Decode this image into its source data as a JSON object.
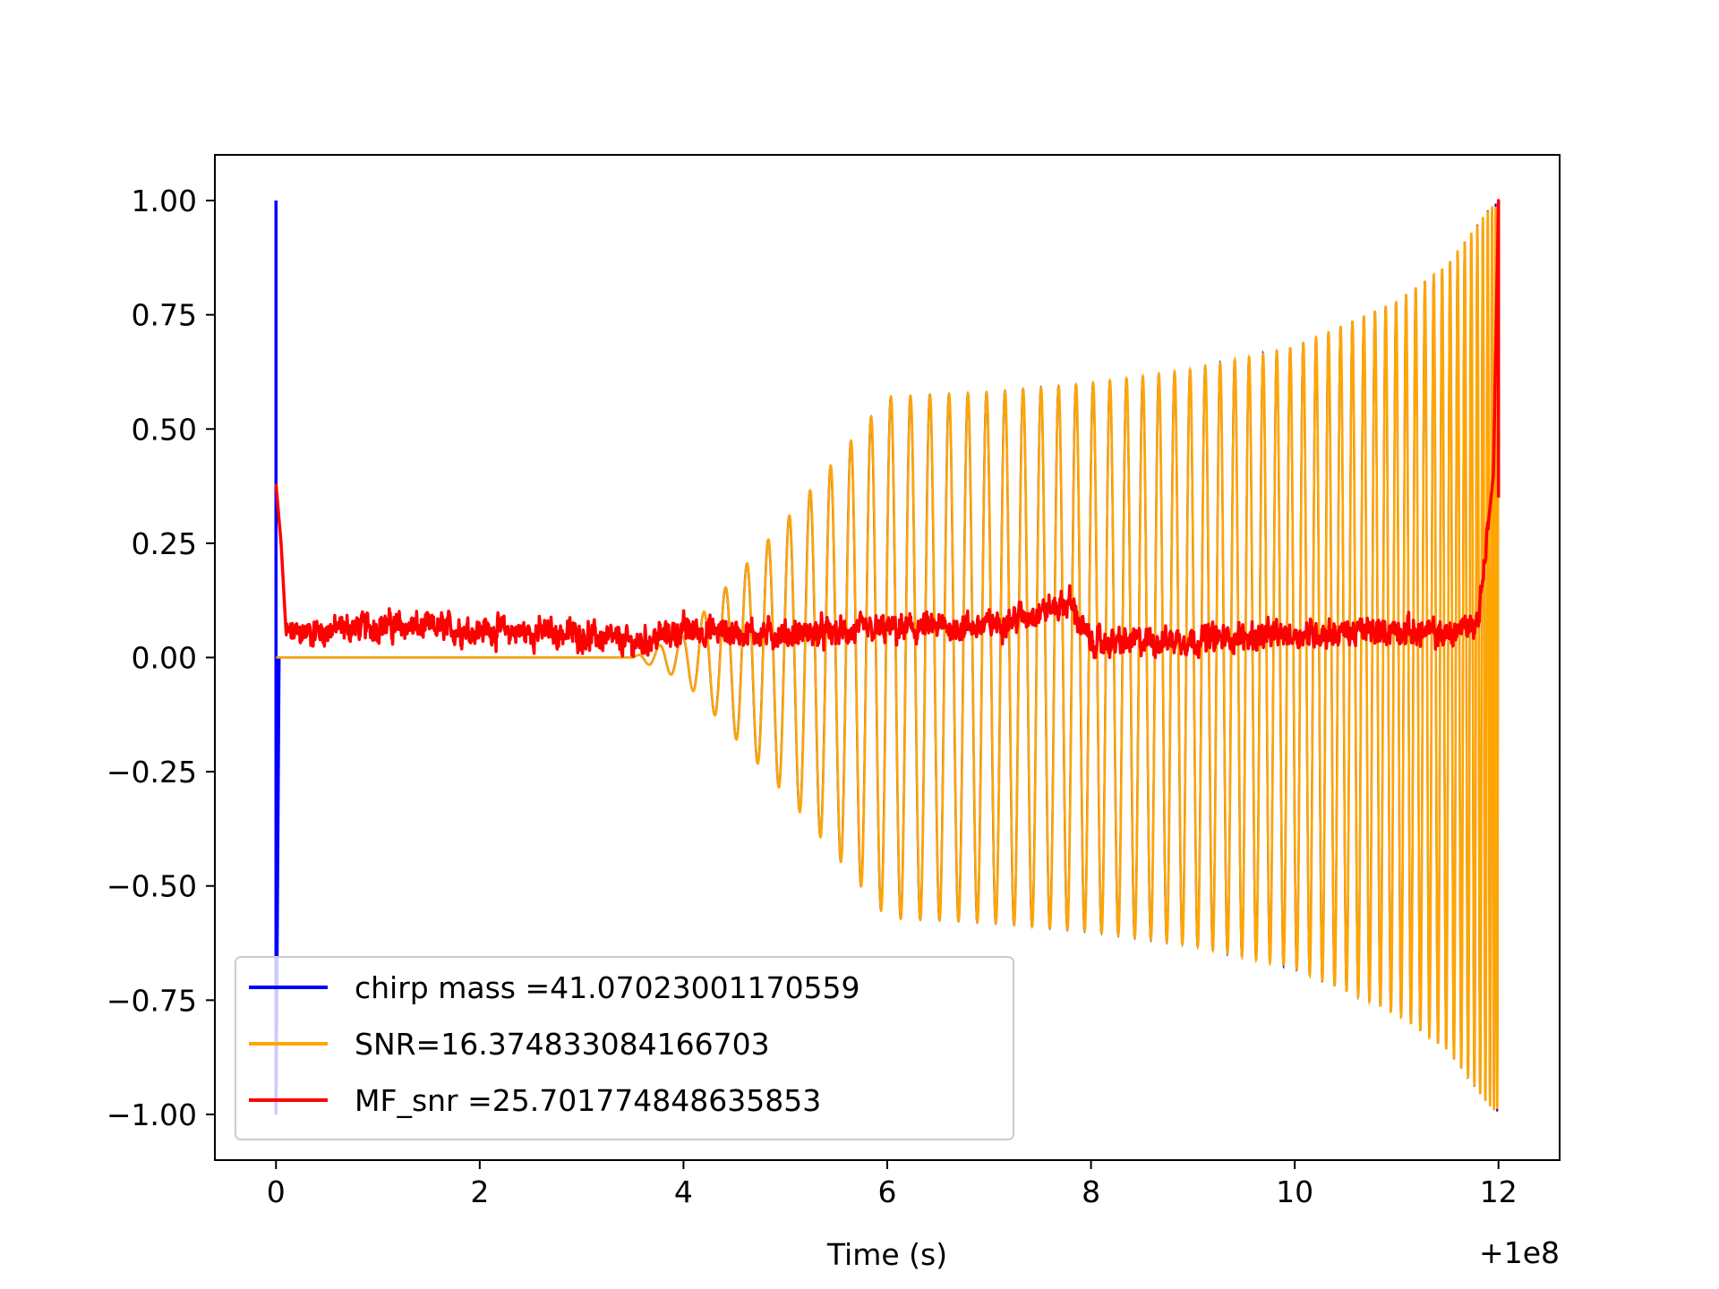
{
  "chart_data": {
    "type": "line",
    "title": "",
    "xlabel": "Time (s)",
    "ylabel": "",
    "x_offset_label": "+1e8",
    "xlim": [
      -0.6,
      12.6
    ],
    "ylim": [
      -1.1,
      1.1
    ],
    "x_ticks": [
      0,
      2,
      4,
      6,
      8,
      10,
      12
    ],
    "x_tick_labels": [
      "0",
      "2",
      "4",
      "6",
      "8",
      "10",
      "12"
    ],
    "y_ticks": [
      1.0,
      0.75,
      0.5,
      0.25,
      0.0,
      -0.25,
      -0.5,
      -0.75,
      -1.0
    ],
    "y_tick_labels": [
      "1.00",
      "0.75",
      "0.50",
      "0.25",
      "0.00",
      "−0.25",
      "−0.50",
      "−0.75",
      "−1.00"
    ],
    "grid": false,
    "legend_position": "lower-left",
    "series": [
      {
        "name": "chirp mass =41.07023001170559",
        "color": "#0000ff",
        "description_points": {
          "x": [
            0.0,
            0.02,
            0.04,
            3.5,
            4.0,
            5.0,
            6.0,
            7.0,
            8.0,
            9.0,
            10.0,
            11.0,
            11.5,
            11.9,
            12.0
          ],
          "envelope": [
            1.0,
            -1.0,
            0.0,
            0.0,
            0.05,
            0.3,
            0.57,
            0.58,
            0.6,
            0.63,
            0.68,
            0.78,
            0.86,
            0.98,
            1.0
          ]
        }
      },
      {
        "name": "SNR=16.374833084166703",
        "color": "#ffa500",
        "description_points": {
          "x": [
            0.0,
            3.5,
            4.0,
            5.0,
            6.0,
            7.0,
            8.0,
            9.0,
            10.0,
            11.0,
            11.5,
            11.9,
            12.0
          ],
          "envelope": [
            0.0,
            0.0,
            0.05,
            0.3,
            0.57,
            0.58,
            0.6,
            0.63,
            0.68,
            0.78,
            0.86,
            0.98,
            1.0
          ]
        }
      },
      {
        "name": "MF_snr =25.701774848635853",
        "color": "#ff0000",
        "x": [
          0.0,
          0.05,
          0.1,
          0.5,
          1.0,
          2.0,
          3.0,
          3.5,
          4.0,
          5.0,
          6.0,
          7.0,
          7.8,
          8.0,
          9.0,
          10.0,
          11.0,
          11.5,
          11.8,
          11.95,
          12.0
        ],
        "y": [
          0.38,
          0.25,
          0.05,
          0.06,
          0.07,
          0.06,
          0.05,
          0.03,
          0.06,
          0.05,
          0.06,
          0.07,
          0.12,
          0.03,
          0.04,
          0.05,
          0.06,
          0.05,
          0.08,
          0.4,
          1.0
        ]
      }
    ]
  }
}
